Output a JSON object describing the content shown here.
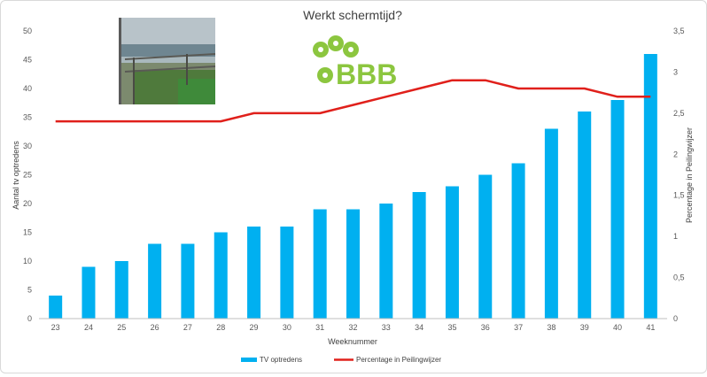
{
  "chart_data": {
    "type": "bar",
    "title": "Werkt schermtijd?",
    "xlabel": "Weeknummer",
    "ylabel": "Aantal tv optredens",
    "y2label": "Percentage in Peilingwijzer",
    "categories": [
      "23",
      "24",
      "25",
      "26",
      "27",
      "28",
      "29",
      "30",
      "31",
      "32",
      "33",
      "34",
      "35",
      "36",
      "37",
      "38",
      "39",
      "40",
      "41"
    ],
    "ylim": [
      0,
      50
    ],
    "y_ticks": [
      "0",
      "5",
      "10",
      "15",
      "20",
      "25",
      "30",
      "35",
      "40",
      "45",
      "50"
    ],
    "y2lim": [
      0,
      3.5
    ],
    "y2_ticks": [
      "0",
      "0,5",
      "1",
      "1,5",
      "2",
      "2,5",
      "3",
      "3,5"
    ],
    "series": [
      {
        "name": "TV optredens",
        "type": "bar",
        "axis": "left",
        "color": "#00b0f0",
        "values": [
          4,
          9,
          10,
          13,
          13,
          15,
          16,
          16,
          19,
          19,
          20,
          22,
          23,
          25,
          27,
          33,
          36,
          38,
          46
        ]
      },
      {
        "name": "Percentage in Peilingwijzer",
        "type": "line",
        "axis": "right",
        "color": "#e0201b",
        "values": [
          2.4,
          2.4,
          2.4,
          2.4,
          2.4,
          2.4,
          2.5,
          2.5,
          2.5,
          2.6,
          2.7,
          2.8,
          2.9,
          2.9,
          2.8,
          2.8,
          2.8,
          2.7,
          2.7
        ]
      }
    ],
    "grid": false,
    "legend": "bottom",
    "logo_text": "BBB",
    "logo_color": "#8cc63f",
    "photo": "beach-fence-photo"
  }
}
